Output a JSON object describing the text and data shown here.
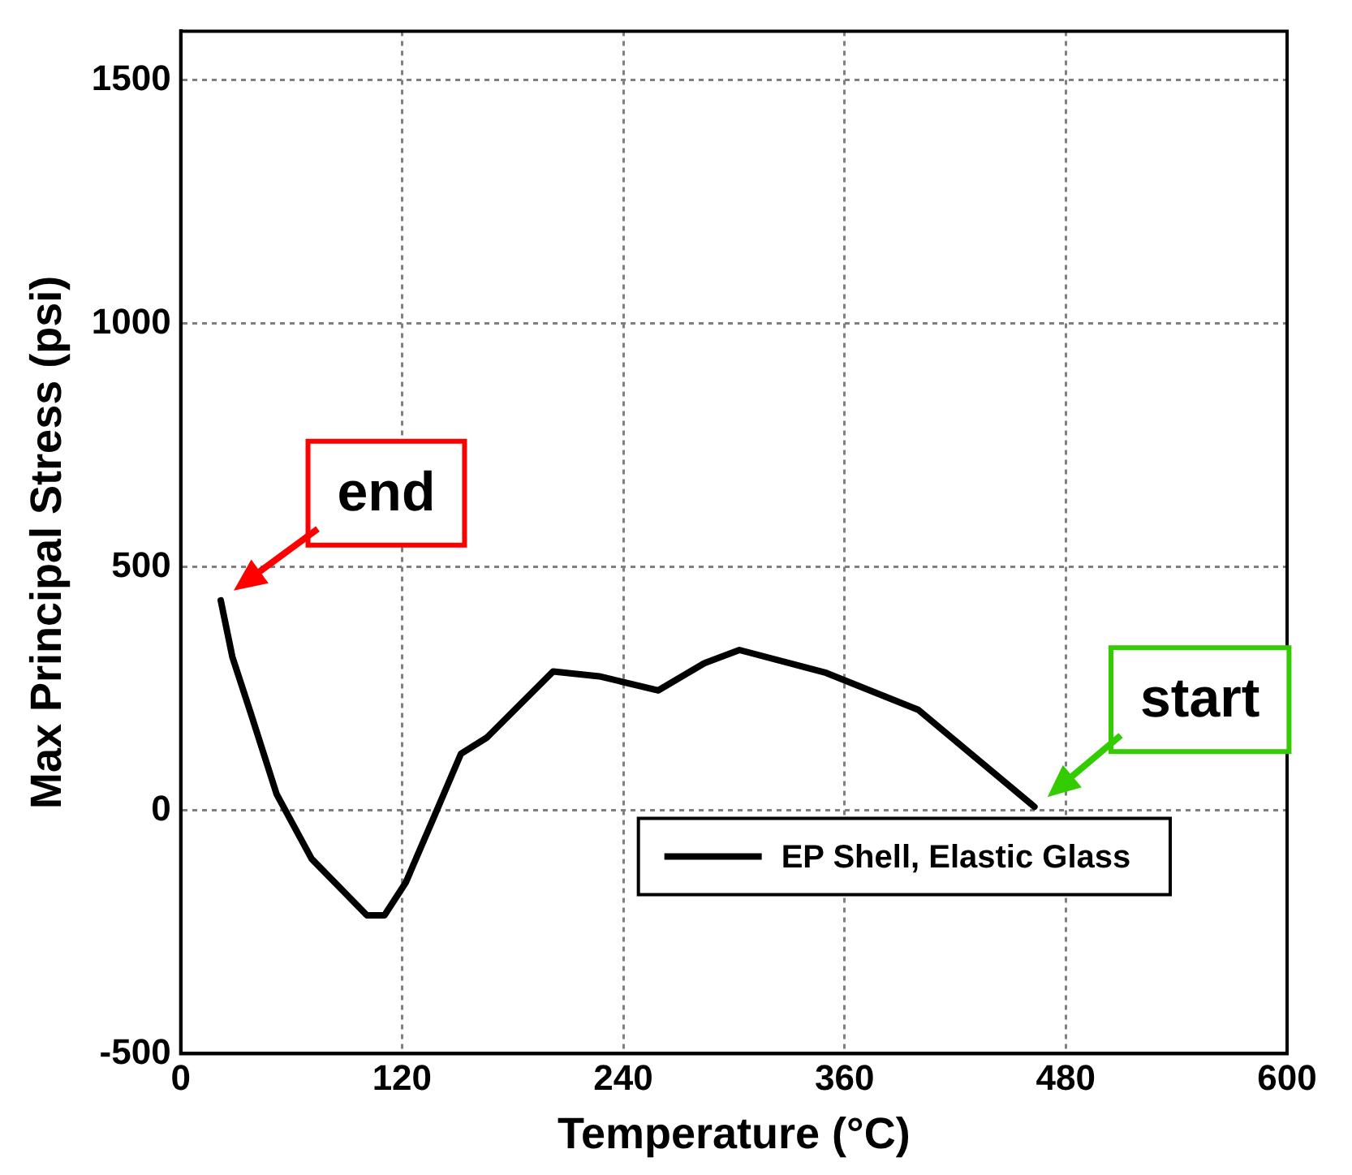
{
  "chart_data": {
    "type": "line",
    "xlabel": "Temperature (°C)",
    "ylabel": "Max Principal Stress (psi)",
    "series": [
      {
        "name": "EP Shell, Elastic Glass",
        "color": "#000000",
        "x": [
          21.7,
          28,
          38,
          52,
          71,
          101,
          110.5,
          122,
          137,
          152,
          166,
          202,
          227,
          259,
          284,
          303,
          350,
          400,
          463
        ],
        "values": [
          431,
          315,
          199,
          33,
          -100,
          -216,
          -216,
          -149,
          -17,
          116,
          149,
          285,
          275,
          246,
          302,
          329,
          282,
          206,
          7
        ]
      }
    ],
    "xlim": [
      0,
      600
    ],
    "xticks": [
      0,
      120,
      240,
      360,
      480,
      600
    ],
    "ylim": [
      -500,
      1600
    ],
    "yticks": [
      -500,
      0,
      500,
      1000,
      1500
    ],
    "grid": true,
    "legend": "bottom right",
    "marker": "none",
    "line_style": "solid",
    "annotations": [
      {
        "text": "end",
        "x": 21.7,
        "y": 431
      },
      {
        "text": "start",
        "x": 463,
        "y": 7
      }
    ]
  }
}
